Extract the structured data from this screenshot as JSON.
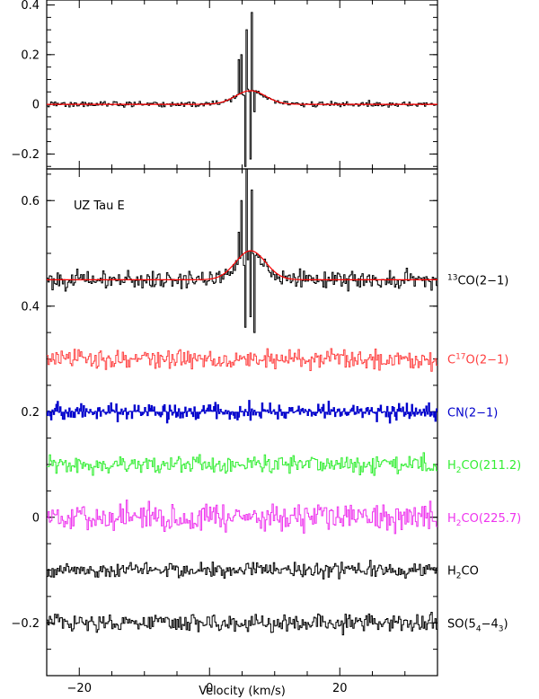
{
  "chart_data": [
    {
      "type": "line",
      "panel": "top",
      "ylim": [
        -0.26,
        0.42
      ],
      "xlim": [
        -25,
        35
      ],
      "yticks": [
        {
          "value": 0.4,
          "label": "0.4"
        },
        {
          "value": 0.2,
          "label": "0.2"
        },
        {
          "value": 0,
          "label": "0"
        },
        {
          "value": -0.2,
          "label": "−0.2"
        }
      ],
      "series": [
        {
          "kind": "spectrum",
          "color": "#000000",
          "noise_amplitude": 0.008,
          "baseline": 0,
          "spike": {
            "x": [
              4.6,
              5.0,
              5.4,
              5.8,
              6.2,
              6.6,
              7.0
            ],
            "y": [
              0.18,
              0.2,
              -0.25,
              0.3,
              -0.22,
              0.37,
              -0.03
            ]
          }
        },
        {
          "kind": "gaussian-fit",
          "color": "#ff0000",
          "baseline": 0,
          "amplitude": 0.055,
          "center": 6.3,
          "sigma": 2.3
        }
      ]
    },
    {
      "type": "line",
      "panel": "bottom",
      "ylim": [
        -0.3,
        0.66
      ],
      "xlim": [
        -25,
        35
      ],
      "xlabel": "Velocity (km/s)",
      "annotation": "UZ Tau E",
      "xticks": [
        {
          "value": -20,
          "label": "−20"
        },
        {
          "value": 0,
          "label": "0"
        },
        {
          "value": 20,
          "label": "20"
        }
      ],
      "yticks": [
        {
          "value": 0.6,
          "label": "0.6"
        },
        {
          "value": 0.4,
          "label": "0.4"
        },
        {
          "value": 0.2,
          "label": "0.2"
        },
        {
          "value": 0,
          "label": "0"
        },
        {
          "value": -0.2,
          "label": "−0.2"
        }
      ],
      "series": [
        {
          "label_main": "CO(2−1)",
          "label_sup": "13",
          "label_sup_pos": "before",
          "color": "#000000",
          "baseline": 0.45,
          "noise_amplitude": 0.012,
          "spike": {
            "x": [
              4.6,
              5.0,
              5.4,
              5.8,
              6.2,
              6.6,
              7.0
            ],
            "y": [
              0.54,
              0.6,
              0.36,
              0.66,
              0.38,
              0.62,
              0.35
            ]
          },
          "fit": {
            "color": "#ff0000",
            "amplitude": 0.055,
            "center": 6.3,
            "sigma": 2.3
          }
        },
        {
          "label_main": "C",
          "label_sup": "17",
          "label_after": "O(2−1)",
          "label_sup_pos": "middle",
          "color": "#ff4040",
          "baseline": 0.3,
          "noise_amplitude": 0.013
        },
        {
          "label_main": "CN(2−1)",
          "color": "#0000cc",
          "baseline": 0.2,
          "noise_amplitude": 0.012,
          "filled": true
        },
        {
          "label_main": "H",
          "label_sub": "2",
          "label_after": "CO(211.2)",
          "color": "#33ee33",
          "baseline": 0.1,
          "noise_amplitude": 0.012
        },
        {
          "label_main": "H",
          "label_sub": "2",
          "label_after": "CO(225.7)",
          "color": "#ee33ee",
          "baseline": 0.0,
          "noise_amplitude": 0.018
        },
        {
          "label_main": "H",
          "label_sub": "2",
          "label_after": "CO",
          "color": "#000000",
          "baseline": -0.1,
          "noise_amplitude": 0.01
        },
        {
          "label_main": "SO(5",
          "label_sub": "4",
          "label_after": "−4",
          "label_sub2": "3",
          "label_after2": ")",
          "color": "#000000",
          "baseline": -0.2,
          "noise_amplitude": 0.012
        }
      ]
    }
  ]
}
